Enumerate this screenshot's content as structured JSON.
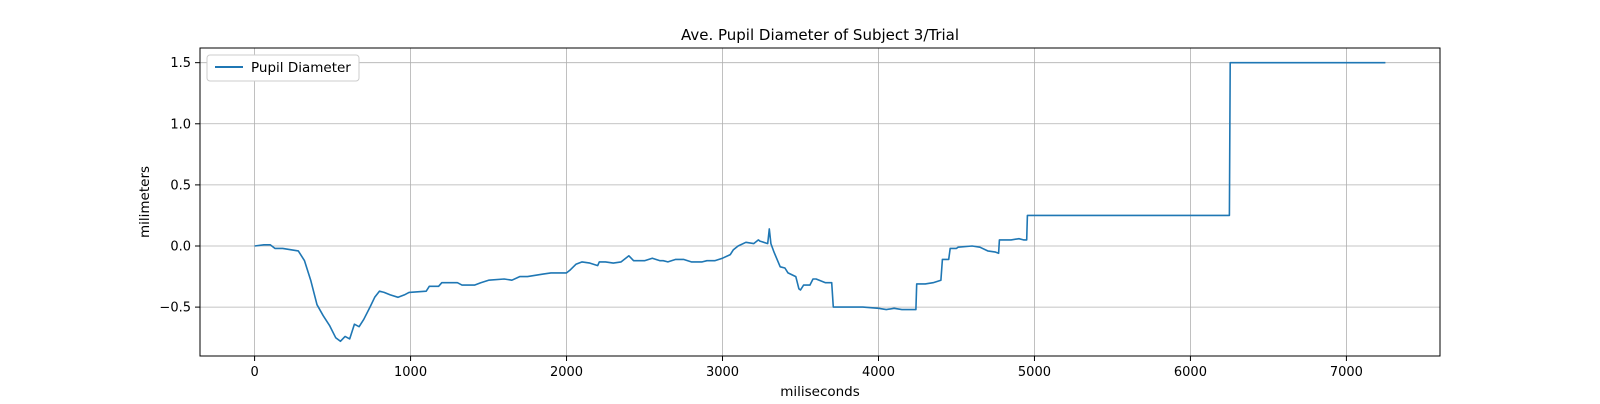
{
  "chart_data": {
    "type": "line",
    "title": "Ave. Pupil Diameter of Subject 3/Trial",
    "xlabel": "miliseconds",
    "ylabel": "milimeters",
    "xlim": [
      -350,
      7600
    ],
    "ylim": [
      -0.9,
      1.62
    ],
    "grid": true,
    "legend_position": "top-left",
    "x_ticks": [
      0,
      1000,
      2000,
      3000,
      4000,
      5000,
      6000,
      7000
    ],
    "x_tick_labels": [
      "0",
      "1000",
      "2000",
      "3000",
      "4000",
      "5000",
      "6000",
      "7000"
    ],
    "y_ticks": [
      -0.5,
      0.0,
      0.5,
      1.0,
      1.5
    ],
    "y_tick_labels": [
      "−0.5",
      "0.0",
      "0.5",
      "1.0",
      "1.5"
    ],
    "series": [
      {
        "name": "Pupil Diameter",
        "color": "#1f77b4",
        "x": [
          0,
          60,
          100,
          130,
          180,
          230,
          280,
          320,
          360,
          400,
          440,
          480,
          520,
          550,
          580,
          610,
          640,
          670,
          700,
          740,
          770,
          800,
          830,
          870,
          920,
          960,
          990,
          1100,
          1120,
          1180,
          1200,
          1300,
          1330,
          1410,
          1450,
          1500,
          1600,
          1650,
          1700,
          1750,
          1800,
          1850,
          1900,
          2000,
          2020,
          2060,
          2100,
          2150,
          2200,
          2210,
          2250,
          2300,
          2350,
          2400,
          2430,
          2500,
          2550,
          2600,
          2620,
          2650,
          2700,
          2750,
          2800,
          2870,
          2900,
          2950,
          3000,
          3050,
          3070,
          3100,
          3150,
          3200,
          3230,
          3240,
          3290,
          3300,
          3310,
          3330,
          3370,
          3400,
          3420,
          3470,
          3490,
          3500,
          3520,
          3560,
          3580,
          3600,
          3660,
          3700,
          3710,
          3750,
          3800,
          3900,
          4000,
          4050,
          4100,
          4150,
          4200,
          4240,
          4245,
          4300,
          4350,
          4400,
          4410,
          4450,
          4460,
          4500,
          4510,
          4600,
          4650,
          4700,
          4750,
          4770,
          4775,
          4800,
          4850,
          4900,
          4930,
          4950,
          4955,
          5000,
          6250,
          6255,
          7250
        ],
        "y": [
          0.0,
          0.01,
          0.01,
          -0.02,
          -0.02,
          -0.03,
          -0.04,
          -0.12,
          -0.28,
          -0.48,
          -0.57,
          -0.65,
          -0.75,
          -0.78,
          -0.74,
          -0.76,
          -0.64,
          -0.66,
          -0.6,
          -0.5,
          -0.42,
          -0.37,
          -0.38,
          -0.4,
          -0.42,
          -0.4,
          -0.38,
          -0.37,
          -0.33,
          -0.33,
          -0.3,
          -0.3,
          -0.32,
          -0.32,
          -0.3,
          -0.28,
          -0.27,
          -0.28,
          -0.25,
          -0.25,
          -0.24,
          -0.23,
          -0.22,
          -0.22,
          -0.2,
          -0.15,
          -0.13,
          -0.14,
          -0.16,
          -0.13,
          -0.13,
          -0.14,
          -0.13,
          -0.08,
          -0.12,
          -0.12,
          -0.1,
          -0.12,
          -0.12,
          -0.13,
          -0.11,
          -0.11,
          -0.13,
          -0.13,
          -0.12,
          -0.12,
          -0.1,
          -0.07,
          -0.03,
          0.0,
          0.03,
          0.02,
          0.05,
          0.04,
          0.02,
          0.14,
          0.02,
          -0.05,
          -0.17,
          -0.18,
          -0.22,
          -0.25,
          -0.35,
          -0.36,
          -0.32,
          -0.32,
          -0.27,
          -0.27,
          -0.3,
          -0.3,
          -0.5,
          -0.5,
          -0.5,
          -0.5,
          -0.51,
          -0.52,
          -0.51,
          -0.52,
          -0.52,
          -0.52,
          -0.31,
          -0.31,
          -0.3,
          -0.28,
          -0.11,
          -0.11,
          -0.02,
          -0.02,
          -0.01,
          0.0,
          -0.01,
          -0.04,
          -0.05,
          -0.06,
          0.05,
          0.05,
          0.05,
          0.06,
          0.05,
          0.05,
          0.25,
          0.25,
          0.25,
          1.5,
          1.5
        ]
      }
    ]
  }
}
